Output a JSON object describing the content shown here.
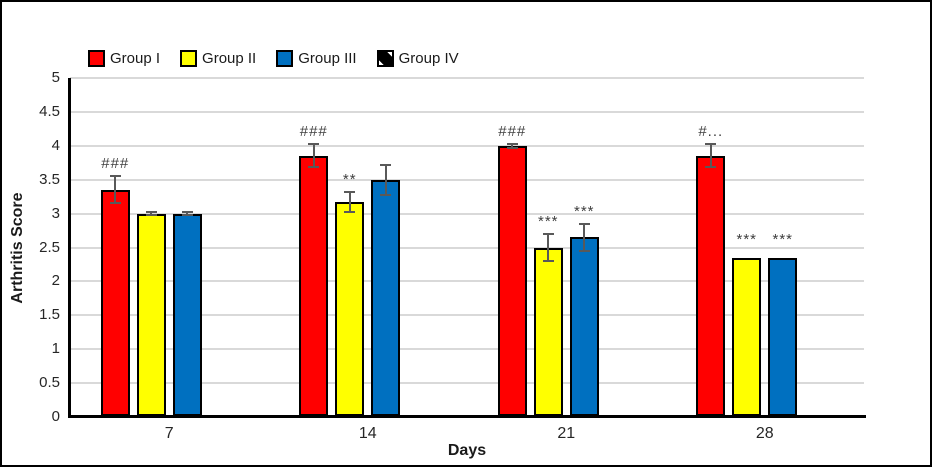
{
  "figure": {
    "background": "#FFFFFF",
    "border_color": "#000000"
  },
  "styles": {
    "gridline_color": "#D9D9D9",
    "axis_color": "#000000",
    "error_bar_color": "#595959",
    "annotation_color": "#3F3F3F",
    "tick_text_color": "#262626",
    "bar_border_color": "#000000"
  },
  "chart_data": {
    "type": "bar",
    "title": "",
    "xlabel": "Days",
    "ylabel": "Arthritis Score",
    "categories": [
      "7",
      "14",
      "21",
      "28"
    ],
    "ylim": [
      0,
      5
    ],
    "ytick_step": 0.5,
    "yticks": [
      0,
      0.5,
      1,
      1.5,
      2,
      2.5,
      3,
      3.5,
      4,
      4.5,
      5
    ],
    "grid": "horizontal",
    "legend_position": "top-left",
    "series": [
      {
        "name": "Group I",
        "color": "#FF0000",
        "pattern": "solid",
        "values": [
          3.35,
          3.85,
          4.0,
          3.85
        ],
        "errors": [
          0.2,
          0.17,
          0.03,
          0.17
        ],
        "annotations": [
          "###",
          "###",
          "###",
          "#..."
        ]
      },
      {
        "name": "Group II",
        "color": "#FFFF00",
        "pattern": "solid",
        "values": [
          3.0,
          3.17,
          2.5,
          2.35
        ],
        "errors": [
          0.02,
          0.15,
          0.2,
          0
        ],
        "annotations": [
          "",
          "**",
          "***",
          "***"
        ]
      },
      {
        "name": "Group III",
        "color": "#0070C0",
        "pattern": "solid",
        "values": [
          3.0,
          3.5,
          2.65,
          2.35
        ],
        "errors": [
          0.02,
          0.22,
          0.2,
          0
        ],
        "annotations": [
          "",
          "",
          "***",
          "***"
        ]
      },
      {
        "name": "Group IV",
        "color": "#FFFFFF",
        "pattern": "black-diagonal-stripe",
        "values": [
          0,
          0,
          0,
          0
        ],
        "errors": [
          0,
          0,
          0,
          0
        ],
        "annotations": [
          "",
          "",
          "",
          ""
        ]
      }
    ]
  }
}
